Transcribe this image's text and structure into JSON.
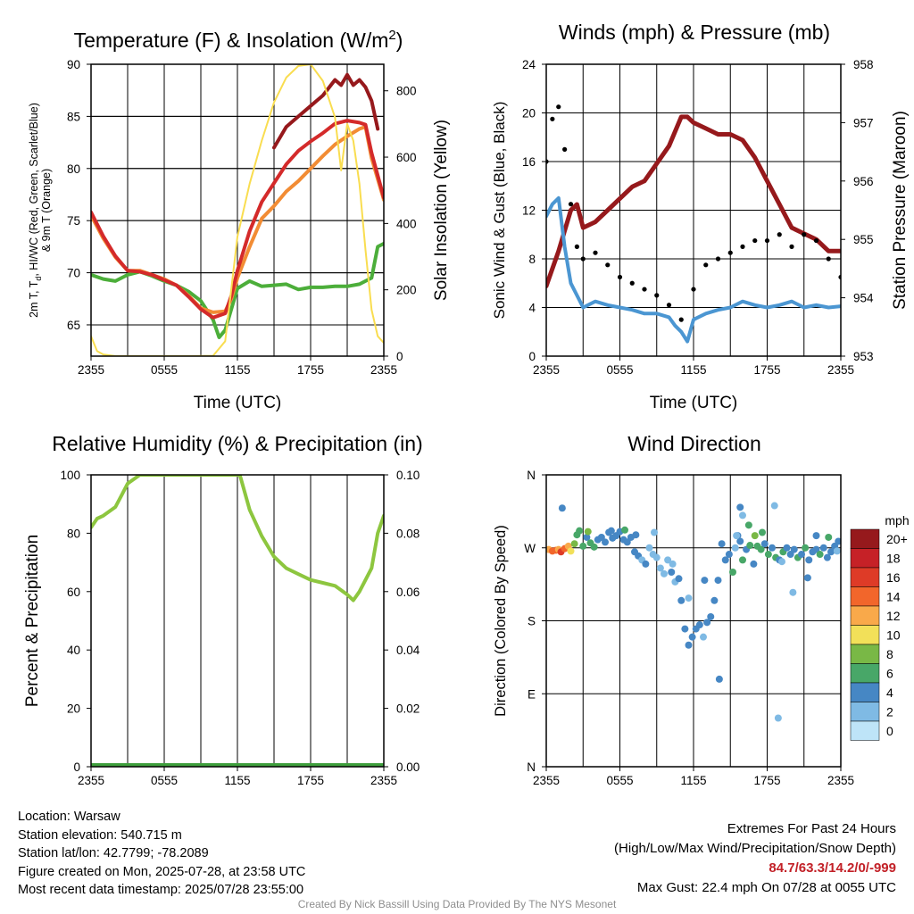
{
  "chart_data": [
    {
      "type": "line",
      "title": "Temperature (F) & Insolation (W/m²)",
      "xlabel": "Time (UTC)",
      "ylabel_left": "2m T, Td, HI/WC (Red, Green, Scarlet/Blue) & 9m T (Orange)",
      "ylabel_right": "Solar Insolation (Yellow)",
      "xticks": [
        "2355",
        "0555",
        "1155",
        "1755",
        "2355"
      ],
      "xlim_hours": [
        0,
        24
      ],
      "ylim_left": [
        62,
        90
      ],
      "yticks_left": [
        "65",
        "70",
        "75",
        "80",
        "85",
        "90"
      ],
      "ylim_right": [
        0,
        880
      ],
      "yticks_right": [
        "0",
        "200",
        "400",
        "600",
        "800"
      ],
      "series": [
        {
          "color": "#4cae3a",
          "axis": "left",
          "x": [
            0,
            1,
            2,
            3,
            4,
            5,
            6,
            7,
            8,
            9,
            10,
            10.5,
            11,
            12,
            13,
            14,
            15,
            16,
            17,
            18,
            19,
            20,
            21,
            22,
            23,
            23.5,
            24
          ],
          "y": [
            69.8,
            69.4,
            69.2,
            69.8,
            70.1,
            69.7,
            69.2,
            68.8,
            68.2,
            67.3,
            65.5,
            63.8,
            64.5,
            68.5,
            69.2,
            68.7,
            68.8,
            68.9,
            68.4,
            68.6,
            68.6,
            68.7,
            68.7,
            68.9,
            69.5,
            72.5,
            72.8
          ]
        },
        {
          "color": "#f28c34",
          "axis": "left",
          "x": [
            0,
            1,
            2,
            3,
            4,
            5,
            6,
            7,
            8,
            9,
            10,
            11,
            11.5,
            12,
            13,
            14,
            15,
            16,
            17,
            18,
            19,
            20,
            21,
            22,
            22.5,
            23,
            24
          ],
          "y": [
            75.5,
            73.3,
            71.5,
            70.2,
            70.2,
            69.8,
            69.4,
            68.8,
            67.8,
            66.6,
            66.2,
            66.3,
            67.5,
            69.5,
            72.5,
            75.2,
            76.4,
            77.8,
            78.8,
            80.0,
            81.2,
            82.3,
            83.1,
            83.8,
            84.0,
            81.0,
            77.0
          ]
        },
        {
          "color": "#d42a2a",
          "axis": "left",
          "x": [
            0,
            1,
            2,
            3,
            4,
            5,
            6,
            7,
            8,
            9,
            10,
            11,
            11.5,
            12,
            13,
            14,
            15,
            16,
            17,
            18,
            19,
            20,
            21,
            22,
            22.5,
            23,
            24
          ],
          "y": [
            75.8,
            73.5,
            71.6,
            70.2,
            70.1,
            69.8,
            69.3,
            68.8,
            67.7,
            66.5,
            65.7,
            66.1,
            67.8,
            70.2,
            74.0,
            76.8,
            78.6,
            80.4,
            81.7,
            82.6,
            83.4,
            84.3,
            84.6,
            84.4,
            84.2,
            81.5,
            77.2
          ]
        },
        {
          "color": "#96191c",
          "axis": "left",
          "x": [
            15,
            16,
            17,
            18,
            19,
            20,
            20.5,
            21,
            21.5,
            22,
            22.5,
            23,
            23.5
          ],
          "y": [
            82,
            84.0,
            85.0,
            86.0,
            87.0,
            88.5,
            88.0,
            89.0,
            88.0,
            88.5,
            87.8,
            86.5,
            83.8
          ]
        },
        {
          "color": "#f9dd50",
          "axis": "right",
          "x": [
            0,
            0.5,
            1,
            2,
            4,
            6,
            8,
            10,
            11,
            12,
            13,
            14,
            15,
            16,
            17,
            18,
            19,
            20,
            20.5,
            21,
            21.5,
            22,
            22.5,
            23,
            23.5,
            24
          ],
          "y": [
            60,
            15,
            5,
            0,
            0,
            0,
            0,
            1,
            45,
            360,
            520,
            650,
            765,
            840,
            875,
            880,
            830,
            720,
            560,
            700,
            650,
            520,
            320,
            140,
            60,
            40
          ]
        }
      ]
    },
    {
      "type": "line",
      "title": "Winds (mph) & Pressure (mb)",
      "xlabel": "Time (UTC)",
      "ylabel_left": "Sonic Wind & Gust (Blue, Black)",
      "ylabel_right": "Station Pressure (Maroon)",
      "xticks": [
        "2355",
        "0555",
        "1155",
        "1755",
        "2355"
      ],
      "xlim_hours": [
        0,
        24
      ],
      "ylim_left": [
        0,
        24
      ],
      "yticks_left": [
        "0",
        "4",
        "8",
        "12",
        "16",
        "20",
        "24"
      ],
      "ylim_right": [
        953,
        958
      ],
      "yticks_right": [
        "953",
        "954",
        "955",
        "956",
        "957",
        "958"
      ],
      "series": [
        {
          "color": "#96191c",
          "axis": "right",
          "x": [
            0,
            1,
            2,
            2.5,
            3,
            4,
            5,
            6,
            7,
            8,
            9,
            10,
            11,
            11.5,
            12,
            13,
            14,
            15,
            16,
            17,
            18,
            19,
            20,
            21,
            22,
            23,
            24
          ],
          "y": [
            954.2,
            954.8,
            955.5,
            955.6,
            955.2,
            955.3,
            955.5,
            955.7,
            955.9,
            956.0,
            956.3,
            956.6,
            957.1,
            957.1,
            957.0,
            956.9,
            956.8,
            956.8,
            956.7,
            956.4,
            956.0,
            955.6,
            955.2,
            955.1,
            955.0,
            954.8,
            954.8
          ]
        },
        {
          "color": "#4b96d2",
          "axis": "left",
          "x": [
            0,
            0.5,
            1,
            1.5,
            2,
            2.5,
            3,
            4,
            5,
            6,
            7,
            8,
            9,
            10,
            10.5,
            11,
            11.5,
            12,
            13,
            14,
            15,
            16,
            17,
            18,
            19,
            20,
            21,
            22,
            23,
            24
          ],
          "y": [
            11.5,
            12.5,
            13.0,
            9.0,
            6.0,
            5.0,
            4.0,
            4.5,
            4.2,
            4.0,
            3.8,
            3.5,
            3.5,
            3.2,
            2.5,
            2.0,
            1.2,
            3.0,
            3.5,
            3.8,
            4.0,
            4.5,
            4.2,
            4.0,
            4.2,
            4.5,
            4.0,
            4.2,
            4.0,
            4.1
          ]
        },
        {
          "color": "#000000",
          "axis": "left",
          "x": [
            0,
            0.5,
            1,
            1.5,
            2,
            2.5,
            3,
            4,
            5,
            6,
            7,
            8,
            9,
            10,
            11,
            12,
            13,
            14,
            15,
            16,
            17,
            18,
            19,
            20,
            21,
            22,
            23,
            24
          ],
          "y": [
            16.0,
            19.5,
            20.5,
            17.0,
            12.5,
            9.0,
            8.0,
            8.5,
            7.5,
            6.5,
            6.0,
            5.5,
            5.0,
            4.2,
            3.0,
            5.5,
            7.5,
            8.0,
            8.5,
            9.0,
            9.5,
            9.5,
            10.0,
            9.0,
            10.0,
            9.5,
            8.0,
            6.5
          ]
        }
      ]
    },
    {
      "type": "line",
      "title": "Relative Humidity (%) & Precipitation (in)",
      "ylabel_left": "Percent & Precipitation",
      "xticks": [
        "2355",
        "0555",
        "1155",
        "1755",
        "2355"
      ],
      "xlim_hours": [
        0,
        24
      ],
      "ylim_left": [
        0,
        100
      ],
      "yticks_left": [
        "0",
        "20",
        "40",
        "60",
        "80",
        "100"
      ],
      "ylim_right": [
        0,
        0.1
      ],
      "yticks_right": [
        "0.00",
        "0.02",
        "0.04",
        "0.06",
        "0.08",
        "0.10"
      ],
      "series": [
        {
          "color": "#8dc63f",
          "axis": "left",
          "x": [
            0,
            0.5,
            1,
            2,
            2.5,
            3,
            4,
            5,
            6,
            7,
            8,
            9,
            10,
            11,
            12,
            12.2,
            13,
            14,
            15,
            16,
            17,
            18,
            19,
            20,
            21,
            21.5,
            22,
            23,
            23.5,
            24
          ],
          "y": [
            82,
            85,
            86,
            89,
            93,
            97,
            100,
            100,
            100,
            100,
            100,
            100,
            100,
            100,
            100,
            100,
            88,
            79,
            72,
            68,
            66,
            64,
            63,
            62,
            59,
            57,
            60,
            68,
            80,
            86
          ]
        },
        {
          "color": "#3f9f3d",
          "axis": "left",
          "x": [
            0,
            24
          ],
          "y": [
            0,
            0
          ]
        }
      ]
    },
    {
      "type": "scatter",
      "title": "Wind Direction",
      "ylabel_left": "Direction (Colored By Speed)",
      "xticks": [
        "2355",
        "0555",
        "1155",
        "1755",
        "2355"
      ],
      "xlim_hours": [
        0,
        24
      ],
      "ylim_left": [
        0,
        360
      ],
      "yticks_left": [
        "N",
        "E",
        "S",
        "W",
        "N"
      ],
      "colorbar": {
        "title": "mph",
        "labels": [
          "20+",
          "18",
          "16",
          "14",
          "12",
          "10",
          "8",
          "6",
          "4",
          "2",
          "0"
        ],
        "colors": [
          "#96191c",
          "#c62127",
          "#de3b27",
          "#f2662b",
          "#f9a94a",
          "#f2e059",
          "#79b846",
          "#48a768",
          "#4687c4",
          "#7fbae4",
          "#bee4f8"
        ]
      },
      "points": [
        [
          0.2,
          268,
          12
        ],
        [
          0.5,
          266,
          13
        ],
        [
          0.8,
          267,
          14
        ],
        [
          1.0,
          268,
          12
        ],
        [
          1.2,
          265,
          15
        ],
        [
          1.5,
          269,
          14
        ],
        [
          1.8,
          272,
          12
        ],
        [
          2.0,
          266,
          10
        ],
        [
          2.3,
          275,
          8
        ],
        [
          2.5,
          286,
          6
        ],
        [
          2.7,
          291,
          6
        ],
        [
          3.0,
          272,
          6
        ],
        [
          3.3,
          283,
          4
        ],
        [
          3.6,
          276,
          6
        ],
        [
          3.9,
          271,
          5
        ],
        [
          4.2,
          280,
          4
        ],
        [
          4.5,
          283,
          4
        ],
        [
          4.8,
          277,
          3
        ],
        [
          5.1,
          289,
          3
        ],
        [
          5.4,
          282,
          4
        ],
        [
          5.7,
          285,
          3
        ],
        [
          6.0,
          290,
          4
        ],
        [
          6.3,
          280,
          3
        ],
        [
          6.6,
          277,
          4
        ],
        [
          6.9,
          283,
          4
        ],
        [
          7.2,
          265,
          3
        ],
        [
          7.5,
          260,
          3
        ],
        [
          7.8,
          255,
          2
        ],
        [
          8.1,
          250,
          3
        ],
        [
          8.4,
          270,
          2
        ],
        [
          8.7,
          262,
          2
        ],
        [
          9.0,
          258,
          1
        ],
        [
          9.3,
          245,
          2
        ],
        [
          9.6,
          238,
          2
        ],
        [
          9.9,
          255,
          1
        ],
        [
          10.2,
          240,
          3
        ],
        [
          10.5,
          228,
          2
        ],
        [
          10.8,
          232,
          4
        ],
        [
          11.0,
          205,
          3
        ],
        [
          11.3,
          170,
          4
        ],
        [
          11.6,
          150,
          3
        ],
        [
          11.9,
          160,
          4
        ],
        [
          12.2,
          170,
          3
        ],
        [
          12.5,
          175,
          4
        ],
        [
          12.8,
          160,
          2
        ],
        [
          13.1,
          178,
          4
        ],
        [
          13.4,
          185,
          3
        ],
        [
          13.7,
          205,
          4
        ],
        [
          14.0,
          230,
          3
        ],
        [
          14.3,
          275,
          4
        ],
        [
          14.6,
          255,
          4
        ],
        [
          14.9,
          262,
          3
        ],
        [
          15.2,
          240,
          6
        ],
        [
          15.4,
          270,
          2
        ],
        [
          15.6,
          285,
          4
        ],
        [
          15.8,
          278,
          3
        ],
        [
          16.0,
          255,
          6
        ],
        [
          16.3,
          268,
          4
        ],
        [
          16.6,
          273,
          6
        ],
        [
          16.9,
          250,
          4
        ],
        [
          17.2,
          272,
          6
        ],
        [
          17.5,
          268,
          5
        ],
        [
          17.8,
          275,
          4
        ],
        [
          18.1,
          262,
          6
        ],
        [
          18.4,
          270,
          4
        ],
        [
          18.7,
          258,
          5
        ],
        [
          19.0,
          255,
          4
        ],
        [
          19.3,
          265,
          6
        ],
        [
          19.6,
          270,
          4
        ],
        [
          19.9,
          262,
          3
        ],
        [
          20.2,
          268,
          4
        ],
        [
          20.5,
          258,
          5
        ],
        [
          20.8,
          262,
          4
        ],
        [
          21.1,
          270,
          6
        ],
        [
          21.4,
          255,
          4
        ],
        [
          21.7,
          265,
          3
        ],
        [
          22.0,
          268,
          4
        ],
        [
          22.3,
          262,
          6
        ],
        [
          22.6,
          270,
          4
        ],
        [
          22.9,
          258,
          3
        ],
        [
          23.2,
          265,
          4
        ],
        [
          23.5,
          272,
          4
        ],
        [
          23.8,
          278,
          4
        ],
        [
          1.3,
          319,
          4
        ],
        [
          15.8,
          320,
          4
        ],
        [
          15.5,
          285,
          2
        ],
        [
          16.0,
          310,
          2
        ],
        [
          14.1,
          108,
          3
        ],
        [
          11.6,
          208,
          2
        ],
        [
          10.3,
          250,
          2
        ],
        [
          12.9,
          230,
          3
        ],
        [
          18.6,
          322,
          2
        ],
        [
          20.1,
          215,
          2
        ],
        [
          21.3,
          233,
          3
        ],
        [
          18.9,
          60,
          1
        ],
        [
          16.5,
          298,
          5
        ],
        [
          17.0,
          285,
          7
        ],
        [
          17.6,
          289,
          6
        ],
        [
          19.2,
          253,
          2
        ],
        [
          22.0,
          285,
          3
        ],
        [
          23.0,
          283,
          5
        ],
        [
          23.7,
          266,
          2
        ],
        [
          3.4,
          290,
          7
        ],
        [
          5.3,
          291,
          4
        ],
        [
          6.4,
          292,
          5
        ],
        [
          7.3,
          286,
          3
        ],
        [
          8.8,
          289,
          2
        ]
      ]
    }
  ],
  "footer": {
    "location": "Location: Warsaw",
    "elevation": "Station elevation: 540.715 m",
    "latlon": "Station lat/lon: 42.7799; -78.2089",
    "created": "Figure created on Mon, 2025-07-28, at 23:58 UTC",
    "recent": "Most recent data timestamp: 2025/07/28 23:55:00",
    "extremes_title": "Extremes For Past 24 Hours",
    "extremes_legend": "(High/Low/Max Wind/Precipitation/Snow Depth)",
    "extremes_values": "84.7/63.3/14.2/0/-999",
    "max_gust": "Max Gust: 22.4 mph On 07/28 at 0055 UTC",
    "credit": "Created By Nick Bassill Using Data Provided By The NYS Mesonet"
  }
}
